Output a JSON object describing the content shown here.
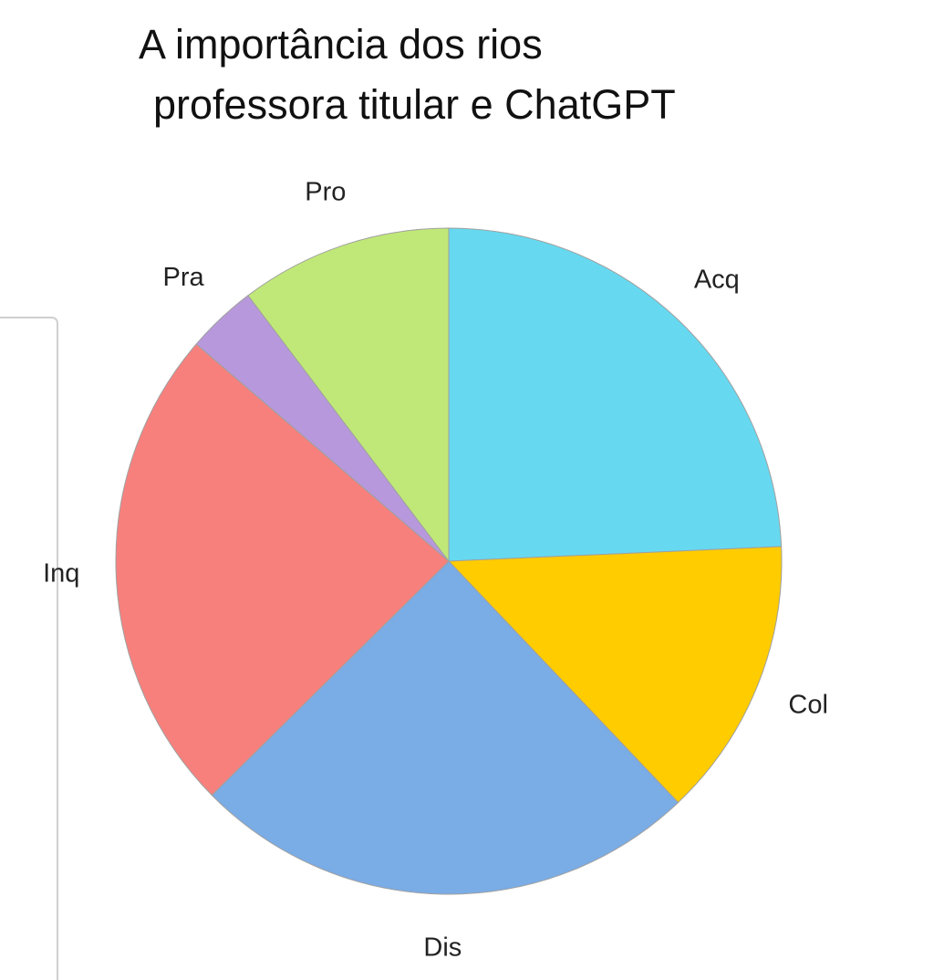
{
  "chart_data": {
    "type": "pie",
    "title": "A importância dos rios",
    "subtitle": "professora titular e ChatGPT",
    "categories": [
      "Acq",
      "Col",
      "Dis",
      "Inq",
      "Pra",
      "Pro"
    ],
    "values": [
      24.3,
      13.6,
      24.7,
      23.7,
      3.4,
      10.3
    ],
    "colors": [
      "#66d9f0",
      "#ffcc00",
      "#7aace6",
      "#f7807d",
      "#b898dc",
      "#c0e878"
    ]
  }
}
